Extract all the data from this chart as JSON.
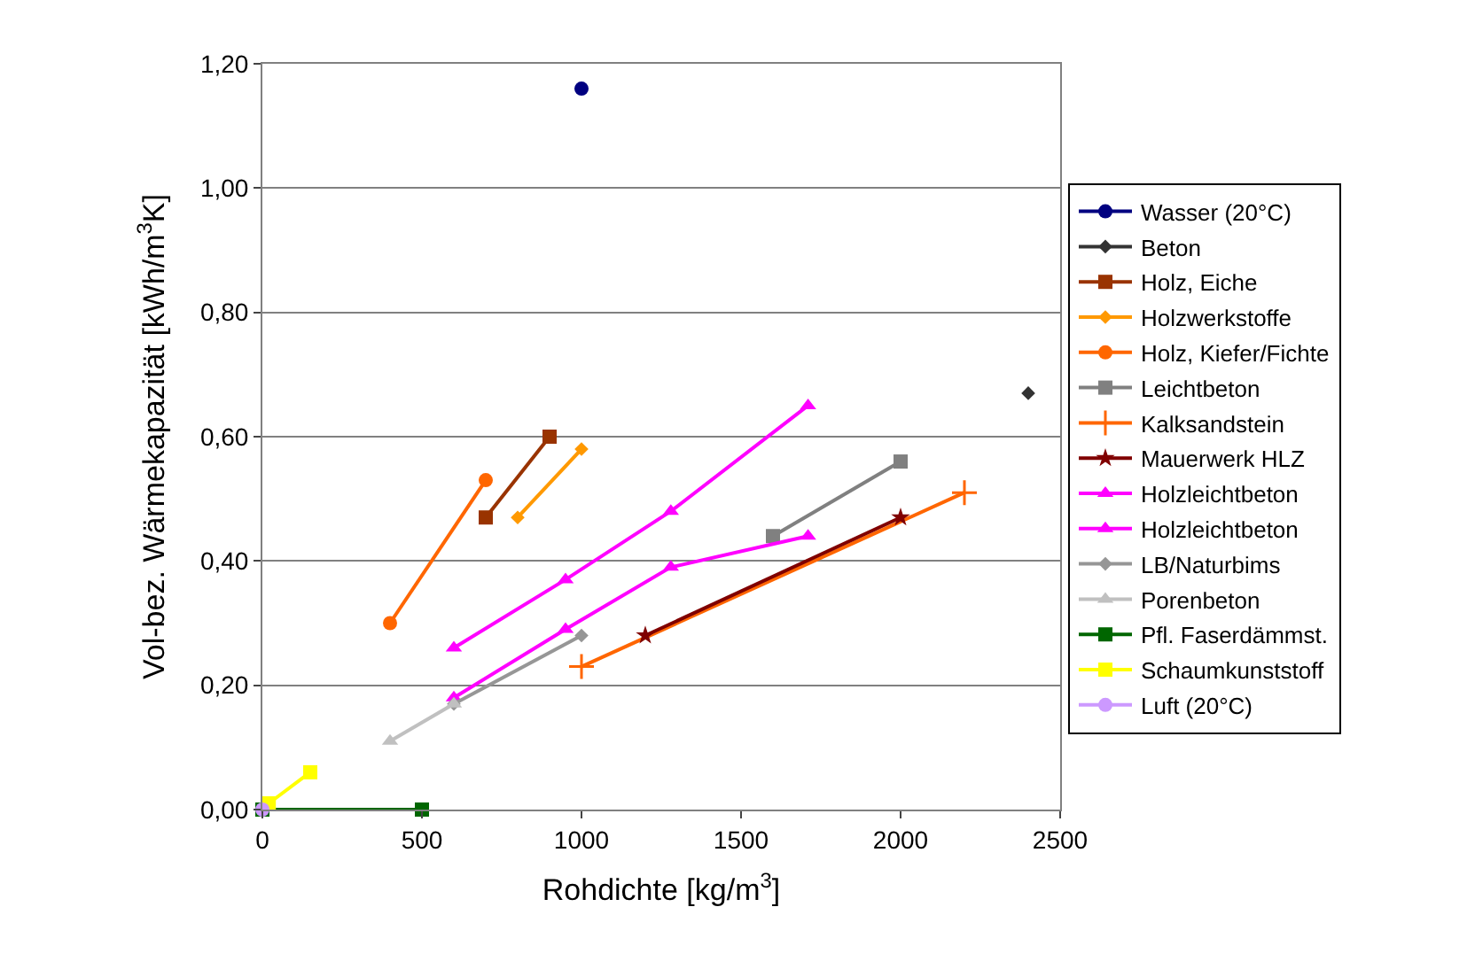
{
  "chart_data": {
    "type": "line",
    "xlabel": "Rohdichte [kg/m$^{3}$]",
    "ylabel": "Vol-bez. Wärmekapazität [kWh/m$^{3}$K]",
    "xlim": [
      0,
      2500
    ],
    "xticks": [
      0,
      500,
      1000,
      1500,
      2000,
      2500
    ],
    "ylim": [
      0,
      1.2
    ],
    "yticks": [
      {
        "value": 0,
        "label": "0,00"
      },
      {
        "value": 0.2,
        "label": "0,20"
      },
      {
        "value": 0.4,
        "label": "0,40"
      },
      {
        "value": 0.6,
        "label": "0,60"
      },
      {
        "value": 0.8,
        "label": "0,80"
      },
      {
        "value": 1.0,
        "label": "1,00"
      },
      {
        "value": 1.2,
        "label": "1,20"
      }
    ],
    "grid": "y",
    "legend": "right",
    "line_style": "solid",
    "series": [
      {
        "name": "Wasser (20°C)",
        "color": "#000080",
        "marker": "circle",
        "x": [
          1000
        ],
        "values": [
          1.16
        ]
      },
      {
        "name": "Beton",
        "color": "#333333",
        "marker": "diamond",
        "x": [
          2400
        ],
        "values": [
          0.67
        ]
      },
      {
        "name": "Holz, Eiche",
        "color": "#993300",
        "marker": "square",
        "x": [
          700,
          900
        ],
        "values": [
          0.47,
          0.6
        ]
      },
      {
        "name": "Holzwerkstoffe",
        "color": "#ff9900",
        "marker": "diamond",
        "x": [
          800,
          1000
        ],
        "values": [
          0.47,
          0.58
        ]
      },
      {
        "name": "Holz, Kiefer/Fichte",
        "color": "#ff6600",
        "marker": "circle",
        "x": [
          400,
          700
        ],
        "values": [
          0.3,
          0.53
        ]
      },
      {
        "name": "Leichtbeton",
        "color": "#808080",
        "marker": "square",
        "x": [
          1600,
          2000
        ],
        "values": [
          0.44,
          0.56
        ]
      },
      {
        "name": "Kalksandstein",
        "color": "#ff6600",
        "marker": "cross",
        "x": [
          1000,
          2200
        ],
        "values": [
          0.23,
          0.51
        ]
      },
      {
        "name": "Mauerwerk HLZ",
        "color": "#800000",
        "marker": "star",
        "x": [
          1200,
          2000
        ],
        "values": [
          0.28,
          0.47
        ]
      },
      {
        "name": "Holzleichtbeton",
        "color": "#ff00ff",
        "marker": "triangle",
        "x": [
          600,
          950,
          1280,
          1710
        ],
        "values": [
          0.26,
          0.37,
          0.48,
          0.65
        ]
      },
      {
        "name": "Holzleichtbeton",
        "color": "#ff00ff",
        "marker": "triangle",
        "x": [
          600,
          950,
          1280,
          1710
        ],
        "values": [
          0.18,
          0.29,
          0.39,
          0.44
        ]
      },
      {
        "name": "LB/Naturbims",
        "color": "#969696",
        "marker": "diamond",
        "x": [
          600,
          1000
        ],
        "values": [
          0.17,
          0.28
        ]
      },
      {
        "name": "Porenbeton",
        "color": "#c0c0c0",
        "marker": "triangle",
        "x": [
          400,
          600
        ],
        "values": [
          0.11,
          0.17
        ]
      },
      {
        "name": "Pfl. Faserdämmst.",
        "color": "#006600",
        "marker": "square",
        "x": [
          0,
          500
        ],
        "values": [
          0.0,
          0.0
        ]
      },
      {
        "name": "Schaumkunststoff",
        "color": "#ffff00",
        "marker": "square",
        "x": [
          20,
          150
        ],
        "values": [
          0.01,
          0.06
        ]
      },
      {
        "name": "Luft (20°C)",
        "color": "#cc99ff",
        "marker": "circle",
        "x": [
          0
        ],
        "values": [
          0.0
        ]
      }
    ]
  }
}
